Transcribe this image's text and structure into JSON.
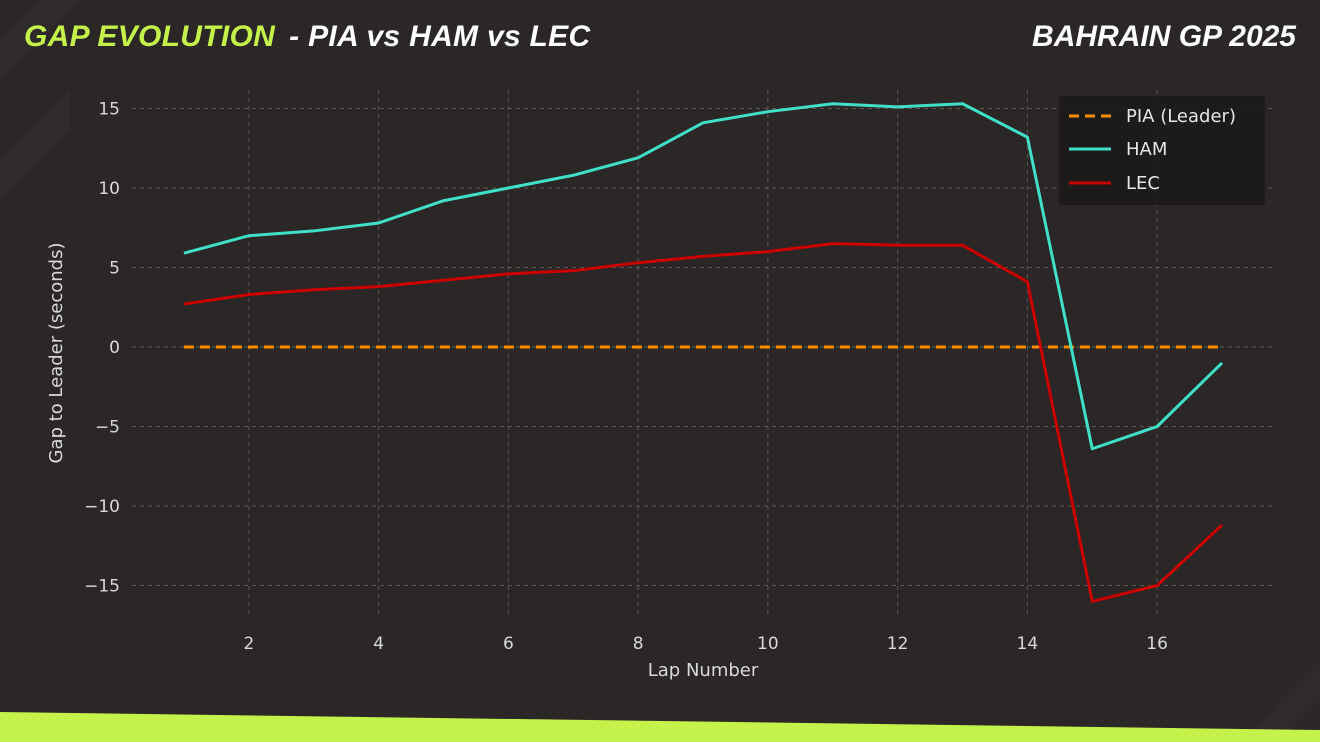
{
  "header": {
    "title_accent": "GAP EVOLUTION",
    "title_rest": "- PIA vs HAM vs LEC",
    "event": "BAHRAIN GP 2025"
  },
  "colors": {
    "background": "#2a2726",
    "accent": "#c5f24a",
    "pia": "#ff8c00",
    "ham": "#40e0c8",
    "lec": "#cc0000",
    "grid": "#5a5756"
  },
  "chart_data": {
    "type": "line",
    "title": "GAP EVOLUTION - PIA vs HAM vs LEC",
    "subtitle": "BAHRAIN GP 2025",
    "xlabel": "Lap Number",
    "ylabel": "Gap to Leader (seconds)",
    "xlim": [
      0.2,
      17.8
    ],
    "ylim": [
      -17,
      16.5
    ],
    "xticks": [
      2,
      4,
      6,
      8,
      10,
      12,
      14,
      16
    ],
    "yticks": [
      15,
      10,
      5,
      0,
      -5,
      -10,
      -15
    ],
    "ytick_labels": [
      "15",
      "10",
      "5",
      "0",
      "−5",
      "−10",
      "−15"
    ],
    "grid": true,
    "legend_position": "upper right",
    "x": [
      1,
      2,
      3,
      4,
      5,
      6,
      7,
      8,
      9,
      10,
      11,
      12,
      13,
      14,
      15,
      16,
      17
    ],
    "series": [
      {
        "name": "PIA (Leader)",
        "style": "dashed",
        "color": "#ff8c00",
        "values": [
          0,
          0,
          0,
          0,
          0,
          0,
          0,
          0,
          0,
          0,
          0,
          0,
          0,
          0,
          0,
          0,
          0
        ]
      },
      {
        "name": "HAM",
        "style": "solid",
        "color": "#40e0c8",
        "values": [
          5.9,
          7.0,
          7.3,
          7.8,
          9.2,
          10.0,
          10.8,
          11.9,
          14.1,
          14.8,
          15.3,
          15.1,
          15.3,
          13.2,
          -6.4,
          -5.0,
          -1.0
        ]
      },
      {
        "name": "LEC",
        "style": "solid",
        "color": "#cc0000",
        "values": [
          2.7,
          3.3,
          3.6,
          3.8,
          4.2,
          4.6,
          4.8,
          5.3,
          5.7,
          6.0,
          6.5,
          6.4,
          6.4,
          4.1,
          -16.0,
          -15.0,
          -11.2
        ]
      }
    ]
  }
}
